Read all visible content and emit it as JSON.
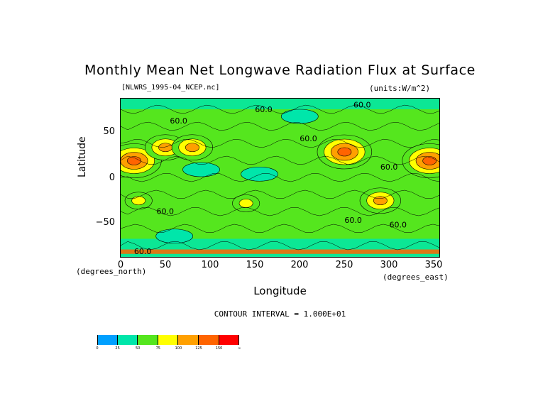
{
  "chart_data": {
    "type": "heatmap",
    "title": "Monthly Mean Net Longwave Radiation Flux at Surface",
    "file_label": "[NLWRS_1995-04_NCEP.nc]",
    "units_label": "(units:W/m^2)",
    "xlabel": "Longitude",
    "ylabel": "Latitude",
    "x_unit_left": "(degrees_north)",
    "x_unit_right": "(degrees_east)",
    "xlim": [
      0,
      357.5
    ],
    "ylim": [
      -90,
      90
    ],
    "xticks": [
      "0",
      "50",
      "100",
      "150",
      "200",
      "250",
      "300",
      "350"
    ],
    "yticks": [
      "50",
      "0",
      "−50"
    ],
    "contour_interval": "CONTOUR INTERVAL = 1.000E+01",
    "contour_labels": [
      "60.0"
    ],
    "colorbar": {
      "levels": [
        "0",
        "25",
        "50",
        "75",
        "100",
        "125",
        "150",
        "∞"
      ],
      "colors": [
        "#00a0ff",
        "#00e6aa",
        "#55e61e",
        "#ffff00",
        "#ffa000",
        "#ff6400",
        "#ff0000"
      ]
    },
    "features": [
      {
        "lon": 15,
        "lat": 20,
        "value": 130
      },
      {
        "lon": 50,
        "lat": 35,
        "value": 120
      },
      {
        "lon": 80,
        "lat": 35,
        "value": 110
      },
      {
        "lon": 140,
        "lat": -28,
        "value": 95
      },
      {
        "lon": 250,
        "lat": 30,
        "value": 125
      },
      {
        "lon": 345,
        "lat": 20,
        "value": 125
      },
      {
        "lon": 290,
        "lat": -25,
        "value": 120
      },
      {
        "lon": 20,
        "lat": -25,
        "value": 95
      },
      {
        "lon": 90,
        "lat": 10,
        "value": 35
      },
      {
        "lon": 155,
        "lat": 5,
        "value": 35
      },
      {
        "lon": 60,
        "lat": -65,
        "value": 35
      },
      {
        "lon": 200,
        "lat": 70,
        "value": 35
      }
    ]
  }
}
